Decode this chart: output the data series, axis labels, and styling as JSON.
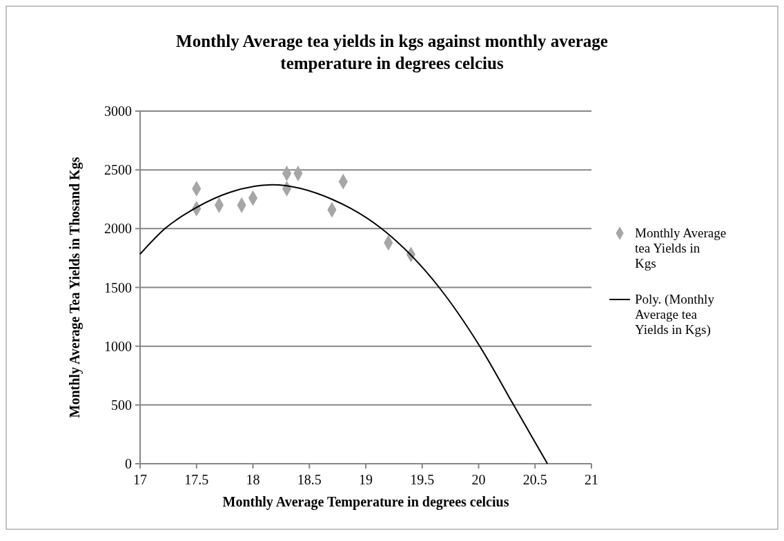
{
  "chart_data": {
    "type": "scatter",
    "title": "Monthly Average tea yields in kgs against monthly average temperature in degrees celcius",
    "xlabel": "Monthly Average Temperature in degrees celcius",
    "ylabel": "Monthly Average Tea Yields in Thosand Kgs",
    "xlim": [
      17,
      21
    ],
    "xticks": [
      17,
      17.5,
      18,
      18.5,
      19,
      19.5,
      20,
      20.5,
      21
    ],
    "ylim": [
      0,
      3000
    ],
    "yticks": [
      0,
      500,
      1000,
      1500,
      2000,
      2500,
      3000
    ],
    "grid": "y",
    "legend": "right",
    "marker": "diamond",
    "series": [
      {
        "name": "Monthly Average tea Yields in Kgs",
        "color": "#a6a6a6",
        "x": [
          17.5,
          17.5,
          17.7,
          17.9,
          18.0,
          18.3,
          18.3,
          18.4,
          18.7,
          18.8,
          19.2,
          19.4
        ],
        "values": [
          2340,
          2170,
          2200,
          2200,
          2260,
          2470,
          2340,
          2470,
          2160,
          2400,
          1880,
          1780
        ]
      },
      {
        "name": "Poly. (Monthly Average tea Yields in Kgs)",
        "type": "line",
        "color": "#000000",
        "marker": "none",
        "x": [
          17,
          17.22,
          17.5,
          17.8,
          18.17,
          18.7,
          19.14,
          19.65,
          20.01,
          20.31,
          20.61
        ],
        "values": [
          1783,
          2000,
          2180,
          2310,
          2373,
          2250,
          2000,
          1500,
          1000,
          500,
          0
        ]
      }
    ]
  }
}
